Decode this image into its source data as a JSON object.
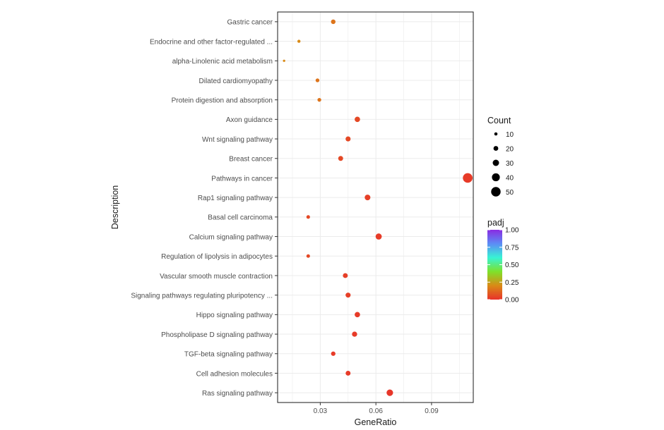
{
  "chart_data": {
    "type": "scatter",
    "title": "",
    "xlabel": "GeneRatio",
    "ylabel": "Description",
    "xlim": [
      0.007,
      0.1125
    ],
    "x_ticks": [
      {
        "value": 0.03,
        "label": "0.03"
      },
      {
        "value": 0.06,
        "label": "0.06"
      },
      {
        "value": 0.09,
        "label": "0.09"
      }
    ],
    "grid": true,
    "legend_position": "right",
    "points": [
      {
        "label": "Gastric cancer",
        "x": 0.037,
        "count": 18,
        "padj": 0.15
      },
      {
        "label": "Endocrine and other factor-regulated ...",
        "x": 0.0185,
        "count": 9,
        "padj": 0.2
      },
      {
        "label": "alpha-Linolenic acid metabolism",
        "x": 0.0105,
        "count": 4,
        "padj": 0.2
      },
      {
        "label": "Dilated cardiomyopathy",
        "x": 0.0285,
        "count": 13,
        "padj": 0.15
      },
      {
        "label": "Protein digestion and absorption",
        "x": 0.0295,
        "count": 13,
        "padj": 0.15
      },
      {
        "label": "Axon guidance",
        "x": 0.05,
        "count": 23,
        "padj": 0.05
      },
      {
        "label": "Wnt signaling pathway",
        "x": 0.045,
        "count": 21,
        "padj": 0.05
      },
      {
        "label": "Breast cancer",
        "x": 0.041,
        "count": 20,
        "padj": 0.05
      },
      {
        "label": "Pathways in cancer",
        "x": 0.1095,
        "count": 50,
        "padj": 0.02
      },
      {
        "label": "Rap1 signaling pathway",
        "x": 0.0555,
        "count": 25,
        "padj": 0.03
      },
      {
        "label": "Basal cell carcinoma",
        "x": 0.0235,
        "count": 12,
        "padj": 0.05
      },
      {
        "label": "Calcium signaling pathway",
        "x": 0.0615,
        "count": 28,
        "padj": 0.02
      },
      {
        "label": "Regulation of lipolysis in adipocytes",
        "x": 0.0235,
        "count": 12,
        "padj": 0.05
      },
      {
        "label": "Vascular smooth muscle contraction",
        "x": 0.0435,
        "count": 20,
        "padj": 0.03
      },
      {
        "label": "Signaling pathways regulating pluripotency ...",
        "x": 0.045,
        "count": 21,
        "padj": 0.03
      },
      {
        "label": "Hippo signaling pathway",
        "x": 0.05,
        "count": 23,
        "padj": 0.02
      },
      {
        "label": "Phospholipase D signaling pathway",
        "x": 0.0485,
        "count": 22,
        "padj": 0.02
      },
      {
        "label": "TGF-beta signaling pathway",
        "x": 0.037,
        "count": 17,
        "padj": 0.02
      },
      {
        "label": "Cell adhesion molecules",
        "x": 0.045,
        "count": 20,
        "padj": 0.02
      },
      {
        "label": "Ras signaling pathway",
        "x": 0.0675,
        "count": 30,
        "padj": 0.01
      }
    ],
    "legend_count": {
      "title": "Count",
      "entries": [
        {
          "value": 10,
          "label": "10"
        },
        {
          "value": 20,
          "label": "20"
        },
        {
          "value": 30,
          "label": "30"
        },
        {
          "value": 40,
          "label": "40"
        },
        {
          "value": 50,
          "label": "50"
        }
      ]
    },
    "legend_padj": {
      "title": "padj",
      "range": [
        0,
        1
      ],
      "ticks": [
        {
          "value": 1.0,
          "label": "1.00"
        },
        {
          "value": 0.75,
          "label": "0.75"
        },
        {
          "value": 0.5,
          "label": "0.50"
        },
        {
          "value": 0.25,
          "label": "0.25"
        },
        {
          "value": 0.0,
          "label": "0.00"
        }
      ],
      "colors": [
        "#e8322a",
        "#d98a16",
        "#7fe12a",
        "#38f4d4",
        "#5c8cf5",
        "#8a2be2"
      ]
    }
  }
}
